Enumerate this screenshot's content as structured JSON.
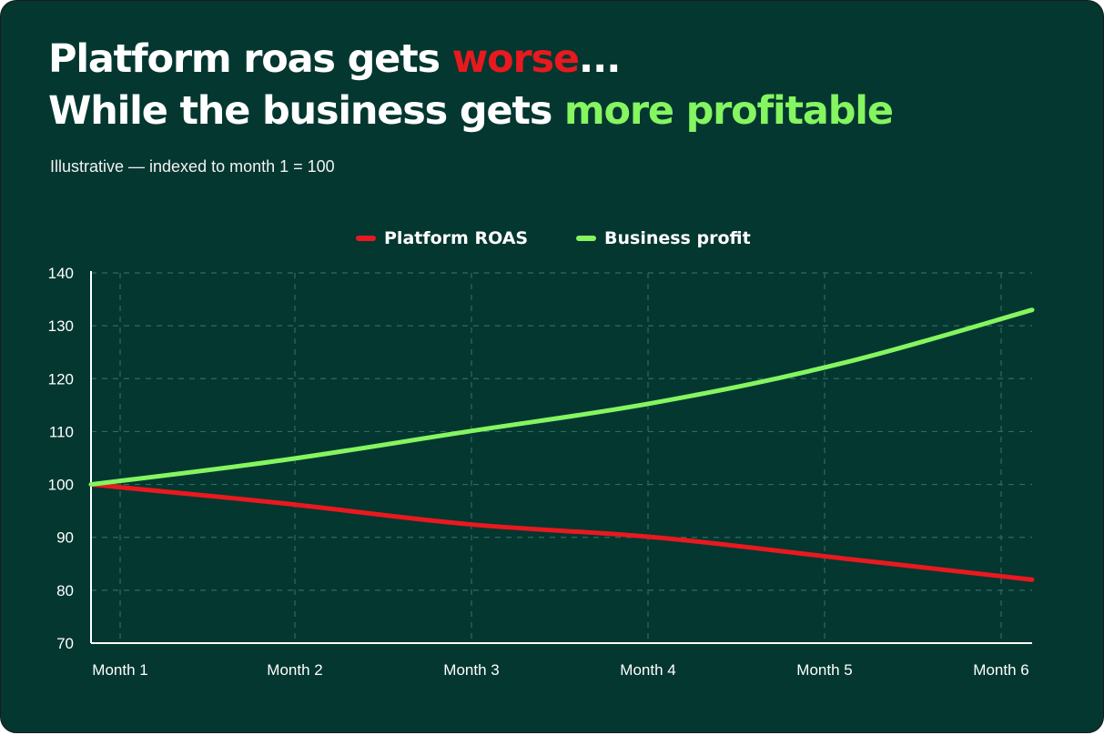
{
  "header": {
    "line1_prefix": "Platform roas gets ",
    "line1_highlight": "worse",
    "line1_suffix": "...",
    "line2_prefix": "While the business gets ",
    "line2_highlight": "more profitable",
    "subtitle": "Illustrative — indexed to month 1 = 100"
  },
  "colors": {
    "background": "#033730",
    "worse": "#e8191f",
    "better": "#85f560",
    "grid": "#2f6b5f",
    "axis": "#ffffff"
  },
  "chart_data": {
    "type": "line",
    "title": "",
    "xlabel": "",
    "ylabel": "",
    "categories": [
      "Month 1",
      "Month 2",
      "Month 3",
      "Month 4",
      "Month 5",
      "Month 6"
    ],
    "yticks": [
      70,
      80,
      90,
      100,
      110,
      120,
      130,
      140
    ],
    "ylim": [
      70,
      140
    ],
    "grid": true,
    "legend_position": "top-center",
    "series": [
      {
        "name": "Platform ROAS",
        "color": "#e8191f",
        "values": [
          100,
          96.5,
          92.5,
          90,
          86,
          82
        ]
      },
      {
        "name": "Business profit",
        "color": "#85f560",
        "values": [
          100,
          104.5,
          110,
          115.5,
          123,
          133
        ]
      }
    ]
  }
}
